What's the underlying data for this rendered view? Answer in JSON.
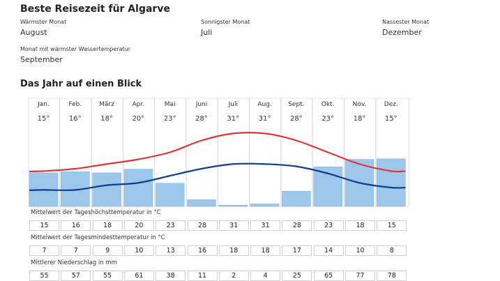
{
  "header": {
    "title": "Beste Reisezeit für Algarve",
    "warmest_label": "Wärmster Monat",
    "warmest_value": "August",
    "sunniest_label": "Sonnigster Monat",
    "sunniest_value": "Juli",
    "wettest_label": "Nassester Monat",
    "wettest_value": "Dezember",
    "water_label": "Monat mit wärmster Wassertemperatur",
    "water_value": "September"
  },
  "section_title": "Das Jahr auf einen Blick",
  "colors": {
    "max_line": "#e03535",
    "min_line": "#0d3f8c",
    "bars": "#9cc6ea",
    "bar_stroke": "#7fb0dc"
  },
  "chart_data": {
    "type": "bar",
    "title": "Das Jahr auf einen Blick",
    "categories": [
      "Jan.",
      "Feb.",
      "März",
      "Apr.",
      "Mai",
      "Juni",
      "Juli",
      "Aug.",
      "Sept.",
      "Okt.",
      "Nov.",
      "Dez."
    ],
    "temp_labels": [
      "15°",
      "16°",
      "18°",
      "20°",
      "23°",
      "28°",
      "31°",
      "31°",
      "28°",
      "23°",
      "18°",
      "15°"
    ],
    "series": [
      {
        "name": "Mittelwert der Tageshöchsttemperatur in °C",
        "kind": "line",
        "values": [
          15,
          16,
          18,
          20,
          23,
          28,
          31,
          31,
          28,
          23,
          18,
          15
        ]
      },
      {
        "name": "Mittelwert der Tagesmindesttemperatur in °C",
        "kind": "line",
        "values": [
          7,
          7,
          9,
          10,
          13,
          16,
          18,
          18,
          17,
          14,
          10,
          8
        ]
      },
      {
        "name": "Mittlerer Niederschlag in mm",
        "kind": "bar",
        "values": [
          55,
          57,
          55,
          61,
          38,
          11,
          2,
          4,
          25,
          65,
          77,
          78
        ]
      }
    ],
    "temp_range": [
      0,
      40
    ],
    "precip_range": [
      0,
      120
    ]
  },
  "rows": [
    {
      "label": "Mittelwert der Tageshöchsttemperatur in °C",
      "values": [
        "15",
        "16",
        "18",
        "20",
        "23",
        "28",
        "31",
        "31",
        "28",
        "23",
        "18",
        "15"
      ]
    },
    {
      "label": "Mittelwert der Tagesmindesttemperatur in °C",
      "values": [
        "7",
        "7",
        "9",
        "10",
        "13",
        "16",
        "18",
        "18",
        "17",
        "14",
        "10",
        "8"
      ]
    },
    {
      "label": "Mittlerer Niederschlag in mm",
      "values": [
        "55",
        "57",
        "55",
        "61",
        "38",
        "11",
        "2",
        "4",
        "25",
        "65",
        "77",
        "78"
      ]
    }
  ]
}
